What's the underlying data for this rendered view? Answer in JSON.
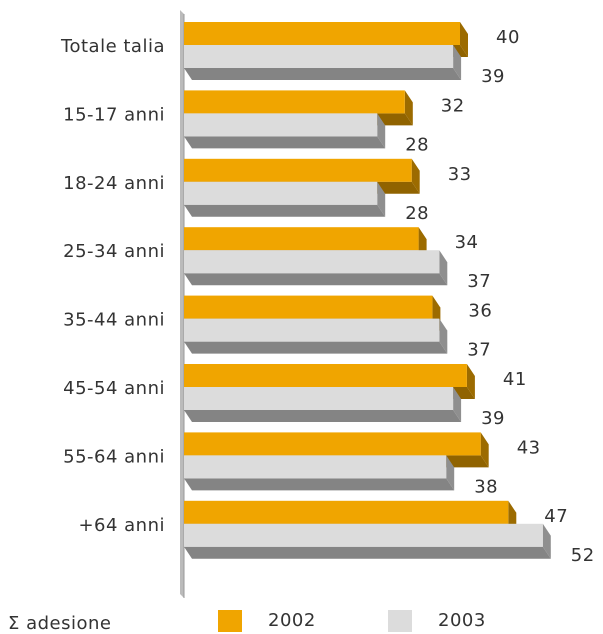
{
  "chart_data": {
    "type": "bar",
    "orientation": "horizontal",
    "categories": [
      "Totale talia",
      "15-17 anni",
      "18-24 anni",
      "25-34 anni",
      "35-44 anni",
      "45-54 anni",
      "55-64 anni",
      "+64 anni"
    ],
    "series": [
      {
        "name": "2002",
        "color": "#f0a500",
        "values": [
          40,
          32,
          33,
          34,
          36,
          41,
          43,
          47
        ]
      },
      {
        "name": "2003",
        "color": "#dcdcdc",
        "values": [
          39,
          28,
          28,
          37,
          37,
          39,
          38,
          52
        ]
      }
    ],
    "legend_title": "Σ adesione"
  }
}
